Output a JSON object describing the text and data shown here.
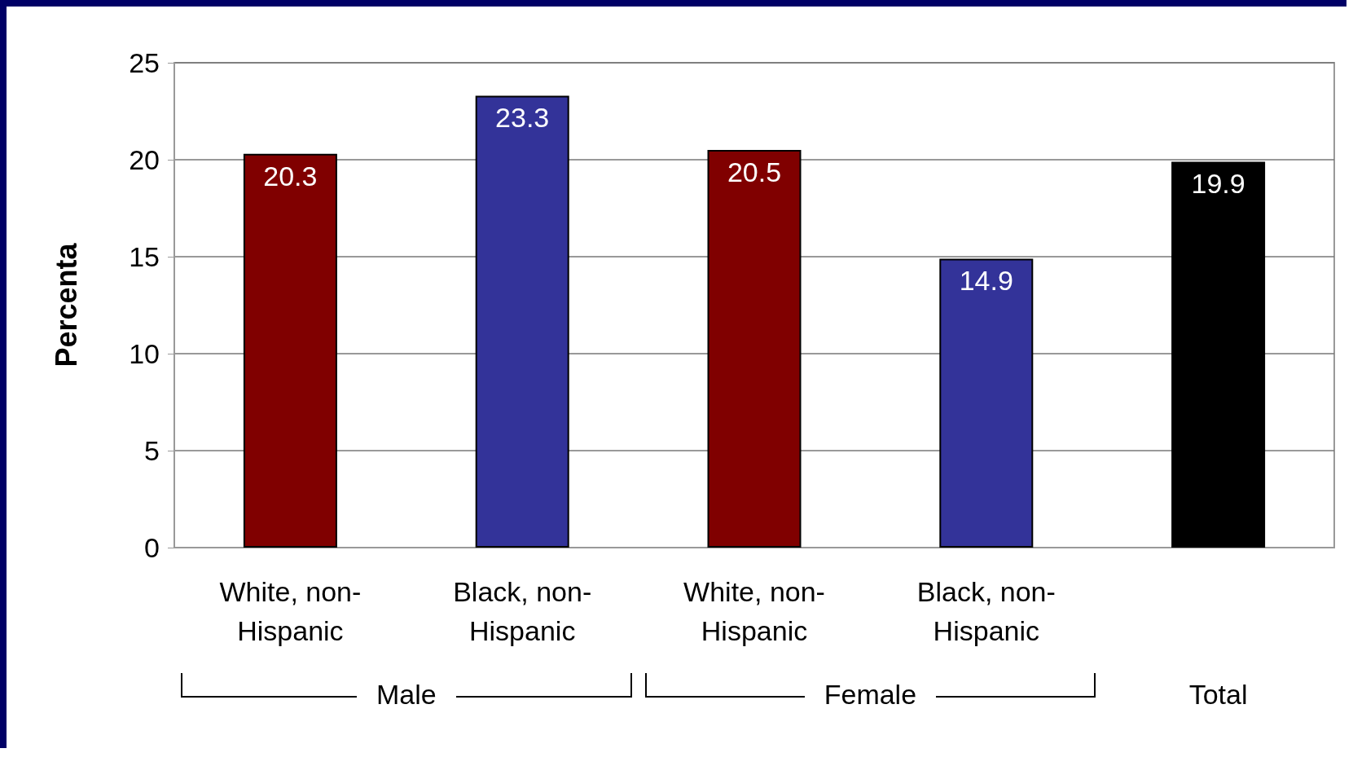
{
  "chart_data": {
    "type": "bar",
    "ylabel": "Percenta",
    "categories": [
      "White, non-Hispanic",
      "Black, non-Hispanic",
      "White, non-Hispanic",
      "Black, non-Hispanic",
      null
    ],
    "values": [
      20.3,
      23.3,
      20.5,
      14.9,
      19.9
    ],
    "colors": [
      "#800000",
      "#333399",
      "#800000",
      "#333399",
      "#000000"
    ],
    "ylim": [
      0,
      25
    ],
    "yticks": [
      0,
      5,
      10,
      15,
      20,
      25
    ],
    "grid": "y",
    "data_labels": true,
    "annotations": [
      "Male",
      "Female",
      "Total"
    ]
  }
}
